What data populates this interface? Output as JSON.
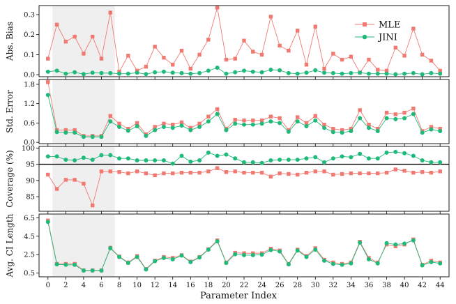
{
  "chart_data": [
    {
      "type": "line",
      "ylabel": "Abs. Bias",
      "ylim": [
        -0.01,
        0.345
      ],
      "yticks": [
        0.0,
        0.1,
        0.2,
        0.3
      ],
      "ytick_labels": [
        "0.0",
        "0.1",
        "0.2",
        "0.3"
      ],
      "series": [
        {
          "name": "MLE",
          "color": "#f07a72",
          "marker": "square",
          "values": [
            0.08,
            0.25,
            0.165,
            0.19,
            0.105,
            0.19,
            0.08,
            0.31,
            0.015,
            0.095,
            0.02,
            0.04,
            0.14,
            0.085,
            0.05,
            0.12,
            0.03,
            0.1,
            0.175,
            0.335,
            0.075,
            0.08,
            0.17,
            0.115,
            0.1,
            0.29,
            0.145,
            0.12,
            0.22,
            0.05,
            0.24,
            0.03,
            0.105,
            0.075,
            0.09,
            0.01,
            0.075,
            0.025,
            0.02,
            0.135,
            0.095,
            0.23,
            0.1,
            0.07,
            0.02
          ]
        },
        {
          "name": "JINI",
          "color": "#1fba7a",
          "marker": "circle",
          "values": [
            0.015,
            0.02,
            0.005,
            0.012,
            0.003,
            0.01,
            0.008,
            0.008,
            0.005,
            0.005,
            0.01,
            0.003,
            0.012,
            0.015,
            0.01,
            0.008,
            0.005,
            0.008,
            0.02,
            0.035,
            0.005,
            0.012,
            0.02,
            0.015,
            0.012,
            0.025,
            0.022,
            0.008,
            0.005,
            0.01,
            0.022,
            0.01,
            0.008,
            0.005,
            0.008,
            0.01,
            0.005,
            0.005,
            0.005,
            0.002,
            0.005,
            0.008,
            0.002,
            0.008,
            0.005
          ]
        }
      ],
      "legend": "top-right",
      "shaded_region": [
        0.5,
        7.5
      ]
    },
    {
      "type": "line",
      "ylabel": "Std. Error",
      "ylim": [
        -0.04,
        1.95
      ],
      "yticks": [
        0.0,
        0.6,
        1.2,
        1.8
      ],
      "ytick_labels": [
        "0.0",
        "0.6",
        "1.2",
        "1.8"
      ],
      "series": [
        {
          "name": "MLE",
          "color": "#f07a72",
          "marker": "square",
          "values": [
            1.87,
            0.38,
            0.38,
            0.38,
            0.2,
            0.2,
            0.2,
            0.82,
            0.58,
            0.42,
            0.6,
            0.25,
            0.48,
            0.58,
            0.55,
            0.62,
            0.45,
            0.58,
            0.8,
            1.03,
            0.42,
            0.7,
            0.68,
            0.68,
            0.68,
            0.8,
            0.75,
            0.38,
            0.78,
            0.6,
            0.82,
            0.55,
            0.42,
            0.38,
            0.42,
            1.0,
            0.55,
            0.42,
            0.92,
            0.87,
            0.92,
            1.05,
            0.35,
            0.48,
            0.42
          ]
        },
        {
          "name": "JINI",
          "color": "#1fba7a",
          "marker": "circle",
          "values": [
            1.47,
            0.32,
            0.3,
            0.3,
            0.17,
            0.17,
            0.17,
            0.65,
            0.48,
            0.36,
            0.5,
            0.2,
            0.38,
            0.48,
            0.45,
            0.52,
            0.38,
            0.48,
            0.65,
            0.88,
            0.38,
            0.58,
            0.55,
            0.55,
            0.58,
            0.65,
            0.6,
            0.33,
            0.65,
            0.5,
            0.68,
            0.45,
            0.32,
            0.3,
            0.35,
            0.75,
            0.45,
            0.35,
            0.75,
            0.72,
            0.75,
            0.88,
            0.3,
            0.4,
            0.35
          ]
        }
      ],
      "shaded_region": [
        0.5,
        7.5
      ]
    },
    {
      "type": "line",
      "ylabel": "Coverage (%)",
      "ylim": [
        80.5,
        100.5
      ],
      "yticks": [
        85,
        90,
        95,
        100
      ],
      "ytick_labels": [
        "85",
        "90",
        "95",
        "100"
      ],
      "reference_line": 95,
      "series": [
        {
          "name": "MLE",
          "color": "#f07a72",
          "marker": "square",
          "values": [
            91.8,
            87.4,
            90.2,
            90.2,
            89.0,
            82.3,
            92.8,
            92.8,
            92.6,
            92.2,
            92.8,
            92.2,
            91.6,
            92.2,
            92.2,
            92.4,
            92.4,
            92.4,
            92.8,
            93.8,
            92.6,
            92.8,
            92.4,
            92.4,
            92.4,
            91.2,
            92.2,
            92.0,
            91.8,
            92.4,
            92.8,
            92.8,
            91.8,
            92.0,
            92.2,
            92.2,
            92.2,
            92.2,
            92.4,
            93.4,
            93.0,
            92.4,
            92.6,
            92.4,
            92.8
          ]
        },
        {
          "name": "JINI",
          "color": "#1fba7a",
          "marker": "circle",
          "values": [
            97.4,
            97.4,
            96.4,
            96.2,
            97.0,
            96.4,
            97.8,
            97.8,
            96.8,
            96.8,
            96.2,
            96.2,
            96.2,
            96.2,
            95.2,
            97.6,
            95.8,
            96.2,
            98.6,
            97.6,
            98.0,
            96.8,
            95.6,
            95.6,
            95.4,
            96.2,
            96.4,
            96.4,
            96.4,
            96.8,
            97.2,
            95.6,
            96.8,
            97.4,
            97.2,
            98.2,
            96.8,
            96.8,
            98.6,
            98.8,
            98.4,
            97.6,
            96.2,
            95.6,
            95.6
          ]
        }
      ],
      "shaded_region": [
        0.5,
        7.5
      ]
    },
    {
      "type": "line",
      "ylabel": "Avg. CI Length",
      "ylim": [
        0.1,
        6.9
      ],
      "yticks": [
        0.5,
        2.5,
        4.5,
        6.5
      ],
      "ytick_labels": [
        "0.5",
        "2.5",
        "4.5",
        "6.5"
      ],
      "series": [
        {
          "name": "MLE",
          "color": "#f07a72",
          "marker": "square",
          "values": [
            6.2,
            1.5,
            1.5,
            1.5,
            0.8,
            0.8,
            0.8,
            3.25,
            2.3,
            1.65,
            2.35,
            0.95,
            1.85,
            2.25,
            2.15,
            2.45,
            1.75,
            2.25,
            3.1,
            4.05,
            1.65,
            2.7,
            2.65,
            2.65,
            2.65,
            3.15,
            2.95,
            1.5,
            3.05,
            2.35,
            3.2,
            1.95,
            1.65,
            1.5,
            1.65,
            3.9,
            2.15,
            1.65,
            3.6,
            3.4,
            3.6,
            4.15,
            1.4,
            1.85,
            1.65
          ]
        },
        {
          "name": "JINI",
          "color": "#1fba7a",
          "marker": "circle",
          "values": [
            6.05,
            1.45,
            1.4,
            1.4,
            0.78,
            0.78,
            0.78,
            3.2,
            2.25,
            1.6,
            2.25,
            0.9,
            1.8,
            2.15,
            2.0,
            2.4,
            1.7,
            2.2,
            3.05,
            3.95,
            1.6,
            2.55,
            2.45,
            2.45,
            2.5,
            3.0,
            2.85,
            1.45,
            2.95,
            2.25,
            3.05,
            1.85,
            1.5,
            1.4,
            1.55,
            3.8,
            2.0,
            1.55,
            3.75,
            3.6,
            3.7,
            4.05,
            1.35,
            1.7,
            1.55
          ]
        }
      ],
      "shaded_region": [
        0.5,
        7.5
      ]
    }
  ],
  "xaxis": {
    "label": "Parameter Index",
    "xlim": [
      -1,
      45
    ],
    "ticks": [
      0,
      2,
      4,
      6,
      8,
      10,
      12,
      14,
      16,
      18,
      20,
      22,
      24,
      26,
      28,
      30,
      32,
      34,
      36,
      38,
      40,
      42,
      44
    ]
  },
  "legend": {
    "entries": [
      "MLE",
      "JINI"
    ]
  }
}
